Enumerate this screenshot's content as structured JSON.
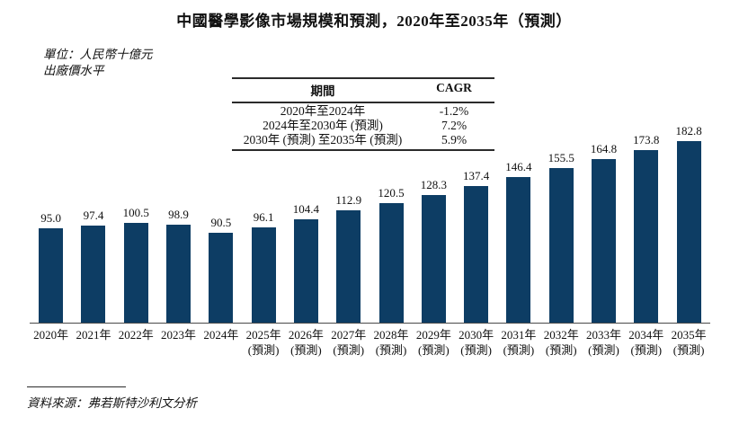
{
  "title": "中國醫學影像市場規模和預測，2020年至2035年（預測）",
  "unit_note": {
    "line1": "單位：人民幣十億元",
    "line2": "出廠價水平"
  },
  "cagr_table": {
    "headers": [
      "期間",
      "CAGR"
    ],
    "rows": [
      {
        "period": "2020年至2024年",
        "cagr": "-1.2%"
      },
      {
        "period": "2024年至2030年 (預測)",
        "cagr": "7.2%"
      },
      {
        "period": "2030年 (預測) 至2035年 (預測)",
        "cagr": "5.9%"
      }
    ]
  },
  "chart_data": {
    "type": "bar",
    "title": "中國醫學影像市場規模和預測，2020年至2035年（預測）",
    "unit": "人民幣十億元，出廠價水平",
    "categories": [
      "2020年",
      "2021年",
      "2022年",
      "2023年",
      "2024年",
      "2025年",
      "2026年",
      "2027年",
      "2028年",
      "2029年",
      "2030年",
      "2031年",
      "2032年",
      "2033年",
      "2034年",
      "2035年"
    ],
    "forecast": [
      false,
      false,
      false,
      false,
      false,
      true,
      true,
      true,
      true,
      true,
      true,
      true,
      true,
      true,
      true,
      true
    ],
    "forecast_suffix": "(預測)",
    "values": [
      95.0,
      97.4,
      100.5,
      98.9,
      90.5,
      96.1,
      104.4,
      112.9,
      120.5,
      128.3,
      137.4,
      146.4,
      155.5,
      164.8,
      173.8,
      182.8
    ],
    "bar_color": "#0d3d64",
    "ylim": [
      0,
      200
    ],
    "grid": false,
    "legend": "none",
    "value_labels": true
  },
  "source": "資料來源：弗若斯特沙利文分析"
}
